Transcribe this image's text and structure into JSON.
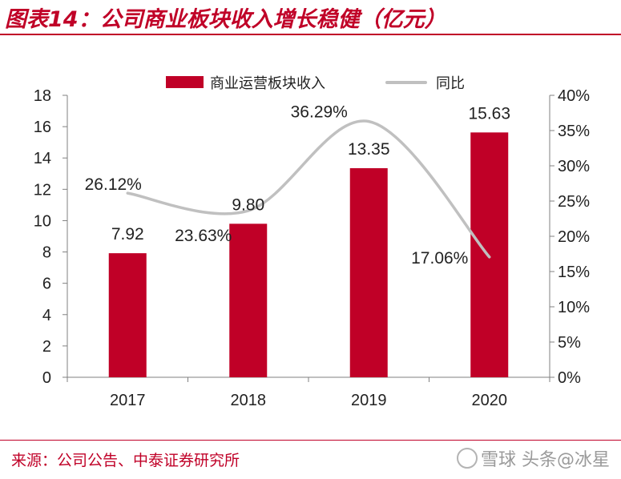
{
  "title": "图表14：公司商业板块收入增长稳健（亿元）",
  "source": "来源：公司公告、中泰证券研究所",
  "watermark": "雪球 头条@冰星",
  "colors": {
    "brand": "#c00027",
    "bar": "#c00027",
    "line": "#c0c0c0",
    "axis": "#808080",
    "text": "#222222"
  },
  "chart_data": {
    "type": "bar",
    "categories": [
      "2017",
      "2018",
      "2019",
      "2020"
    ],
    "series": [
      {
        "name": "商业运营板块收入",
        "type": "bar",
        "axis": "left",
        "values": [
          7.92,
          9.8,
          13.35,
          15.63
        ],
        "labels": [
          "7.92",
          "9.80",
          "13.35",
          "15.63"
        ]
      },
      {
        "name": "同比",
        "type": "line",
        "axis": "right",
        "smooth": true,
        "values": [
          26.12,
          23.63,
          36.29,
          17.06
        ],
        "labels": [
          "26.12%",
          "23.63%",
          "36.29%",
          "17.06%"
        ]
      }
    ],
    "y_left": {
      "min": 0,
      "max": 18,
      "step": 2,
      "ticks": [
        "0",
        "2",
        "4",
        "6",
        "8",
        "10",
        "12",
        "14",
        "16",
        "18"
      ]
    },
    "y_right": {
      "min": 0,
      "max": 40,
      "step": 5,
      "ticks": [
        "0%",
        "5%",
        "10%",
        "15%",
        "20%",
        "25%",
        "30%",
        "35%",
        "40%"
      ]
    },
    "legend_position": "top-center",
    "grid": false
  }
}
